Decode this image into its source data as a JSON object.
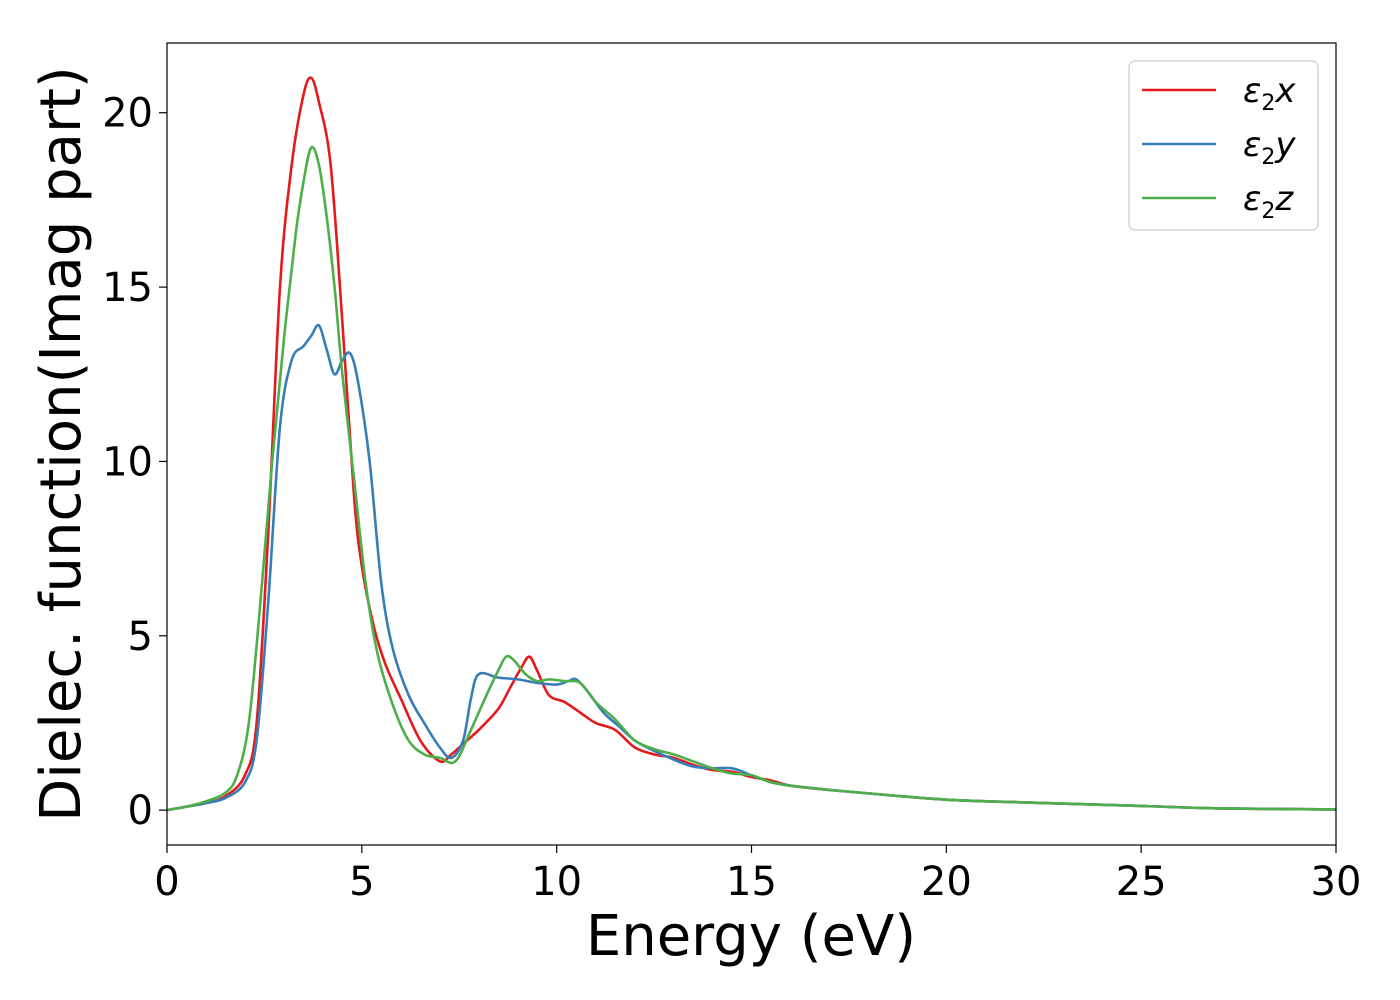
{
  "chart_data": {
    "type": "line",
    "title": "",
    "xlabel": "Energy (eV)",
    "ylabel": "Dielec. function(Imag part)",
    "xlim": [
      0,
      30
    ],
    "ylim": [
      -1,
      22
    ],
    "xticks": [
      0,
      5,
      10,
      15,
      20,
      25,
      30
    ],
    "yticks": [
      0,
      5,
      10,
      15,
      20
    ],
    "grid": false,
    "legend_position": "top-right",
    "series": [
      {
        "name": "ε2x",
        "name_base": "ε",
        "name_sub": "2",
        "name_var": "x",
        "color": "#e41a1c",
        "x": [
          0,
          0.5,
          1.0,
          1.5,
          2.0,
          2.3,
          2.6,
          2.9,
          3.2,
          3.5,
          3.7,
          3.9,
          4.2,
          4.5,
          4.8,
          5.0,
          5.3,
          5.6,
          6.0,
          6.5,
          7.0,
          7.3,
          7.6,
          8.0,
          8.5,
          8.8,
          9.1,
          9.3,
          9.5,
          9.8,
          10.2,
          10.6,
          11.0,
          11.5,
          12.0,
          12.5,
          13.0,
          13.5,
          14.0,
          14.5,
          15.0,
          15.5,
          16.0,
          17.0,
          18.0,
          20.0,
          22.0,
          25.0,
          27.0,
          30.0
        ],
        "y": [
          0,
          0.1,
          0.2,
          0.4,
          1.0,
          2.5,
          8.0,
          15.0,
          18.5,
          20.5,
          21.0,
          20.3,
          18.5,
          14.0,
          9.0,
          7.0,
          5.3,
          4.2,
          3.2,
          2.0,
          1.4,
          1.6,
          1.9,
          2.3,
          2.9,
          3.5,
          4.1,
          4.4,
          4.0,
          3.3,
          3.1,
          2.8,
          2.5,
          2.3,
          1.8,
          1.6,
          1.5,
          1.3,
          1.15,
          1.1,
          0.95,
          0.85,
          0.7,
          0.58,
          0.48,
          0.3,
          0.22,
          0.12,
          0.05,
          0.02
        ]
      },
      {
        "name": "ε2y",
        "name_base": "ε",
        "name_sub": "2",
        "name_var": "y",
        "color": "#377eb8",
        "x": [
          0,
          0.5,
          1.0,
          1.5,
          2.0,
          2.3,
          2.6,
          2.9,
          3.2,
          3.5,
          3.7,
          3.9,
          4.1,
          4.3,
          4.5,
          4.7,
          4.9,
          5.2,
          5.5,
          5.8,
          6.2,
          6.6,
          7.0,
          7.3,
          7.6,
          7.8,
          8.0,
          8.5,
          9.0,
          9.5,
          10.0,
          10.3,
          10.5,
          10.8,
          11.2,
          11.6,
          12.0,
          12.5,
          13.0,
          13.5,
          14.0,
          14.5,
          15.0,
          15.5,
          16.0,
          17.0,
          18.0,
          20.0,
          22.0,
          25.0,
          27.0,
          30.0
        ],
        "y": [
          0,
          0.1,
          0.2,
          0.35,
          0.8,
          2.0,
          6.0,
          11.0,
          12.9,
          13.3,
          13.6,
          13.9,
          13.2,
          12.5,
          12.9,
          13.1,
          12.3,
          10.0,
          6.5,
          4.6,
          3.3,
          2.5,
          1.8,
          1.5,
          2.0,
          3.2,
          3.9,
          3.8,
          3.75,
          3.65,
          3.6,
          3.7,
          3.75,
          3.4,
          2.8,
          2.4,
          2.0,
          1.7,
          1.45,
          1.25,
          1.2,
          1.2,
          1.0,
          0.8,
          0.7,
          0.58,
          0.48,
          0.3,
          0.22,
          0.12,
          0.05,
          0.02
        ]
      },
      {
        "name": "ε2z",
        "name_base": "ε",
        "name_sub": "2",
        "name_var": "z",
        "color": "#4daf4a",
        "x": [
          0,
          0.5,
          1.0,
          1.5,
          1.8,
          2.1,
          2.4,
          2.7,
          3.0,
          3.3,
          3.5,
          3.7,
          3.9,
          4.1,
          4.3,
          4.5,
          4.8,
          5.1,
          5.4,
          5.8,
          6.2,
          6.6,
          7.0,
          7.4,
          7.8,
          8.2,
          8.5,
          8.7,
          8.9,
          9.2,
          9.5,
          9.8,
          10.2,
          10.6,
          11.0,
          11.5,
          12.0,
          12.5,
          13.0,
          13.5,
          14.0,
          14.5,
          15.0,
          15.5,
          16.0,
          17.0,
          18.0,
          20.0,
          22.0,
          25.0,
          27.0,
          30.0
        ],
        "y": [
          0,
          0.1,
          0.25,
          0.5,
          1.0,
          2.5,
          6.0,
          10.0,
          13.5,
          16.5,
          18.0,
          19.0,
          18.5,
          17.0,
          15.0,
          12.5,
          9.5,
          6.5,
          4.5,
          3.0,
          2.0,
          1.6,
          1.5,
          1.4,
          2.3,
          3.3,
          4.0,
          4.4,
          4.3,
          3.9,
          3.7,
          3.75,
          3.7,
          3.65,
          3.1,
          2.6,
          2.0,
          1.75,
          1.6,
          1.4,
          1.2,
          1.05,
          1.0,
          0.8,
          0.7,
          0.58,
          0.48,
          0.3,
          0.22,
          0.12,
          0.05,
          0.02
        ]
      }
    ]
  }
}
